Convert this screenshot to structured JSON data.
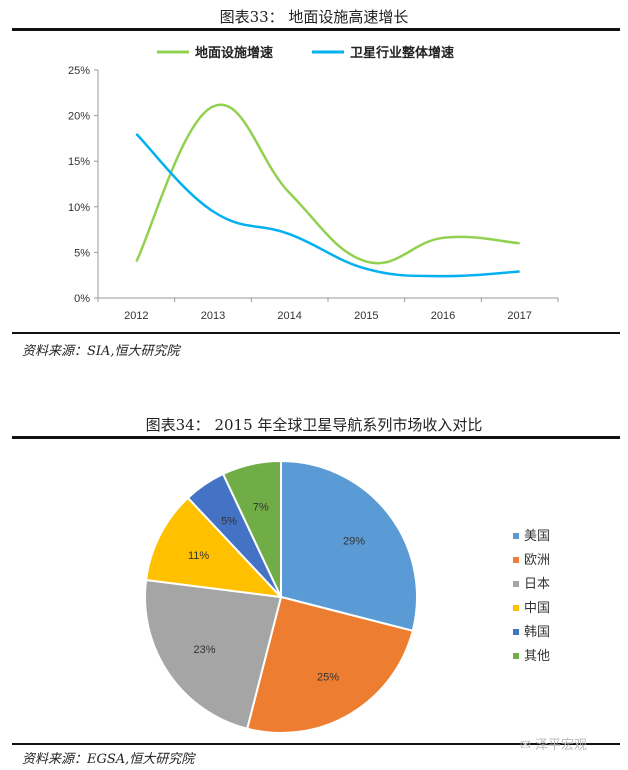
{
  "figure1": {
    "title": "图表33：  地面设施高速增长",
    "source": "资料来源：SIA,恒大研究院"
  },
  "figure2": {
    "title": "图表34：  2015 年全球卫星导航系列市场收入对比",
    "source": "资料来源：EGSA,恒大研究院"
  },
  "watermark": "泽平宏观",
  "chart_data": [
    {
      "type": "line",
      "title": "图表33：  地面设施高速增长",
      "x": [
        "2012",
        "2013",
        "2014",
        "2015",
        "2016",
        "2017"
      ],
      "ylim": [
        0,
        25
      ],
      "yticks": [
        "0%",
        "5%",
        "10%",
        "15%",
        "20%",
        "25%"
      ],
      "legend_position": "top",
      "grid": false,
      "series": [
        {
          "name": "地面设施增速",
          "color": "#92D050",
          "values": [
            4,
            21,
            11.5,
            4,
            6.6,
            6
          ]
        },
        {
          "name": "卫星行业整体增速",
          "color": "#00B0F0",
          "values": [
            18,
            9.5,
            7,
            3.2,
            2.4,
            2.9
          ]
        }
      ]
    },
    {
      "type": "pie",
      "title": "图表34：  2015 年全球卫星导航系列市场收入对比",
      "legend_position": "right",
      "categories": [
        "美国",
        "欧洲",
        "日本",
        "中国",
        "韩国",
        "其他"
      ],
      "values": [
        29,
        25,
        23,
        11,
        5,
        7
      ],
      "labels": [
        "29%",
        "25%",
        "23%",
        "11%",
        "5%",
        "7%"
      ],
      "colors": [
        "#5B9BD5",
        "#ED7D31",
        "#A5A5A5",
        "#FFC000",
        "#4472C4",
        "#70AD47"
      ]
    }
  ]
}
